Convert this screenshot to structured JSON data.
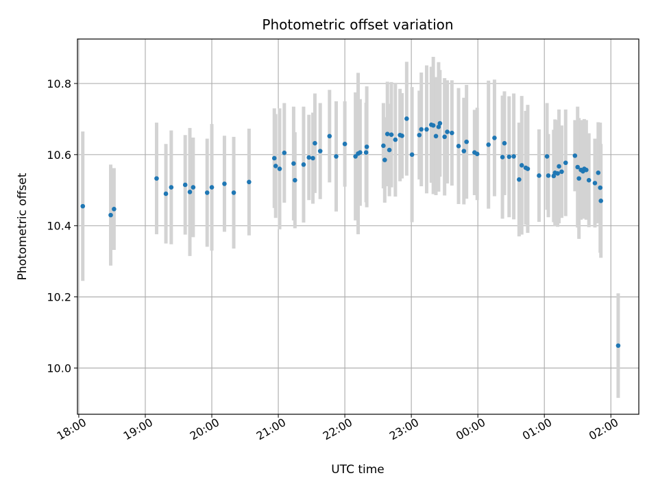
{
  "chart_data": {
    "type": "scatter",
    "title": "Photometric offset variation",
    "xlabel": "UTC time",
    "ylabel": "Photometric offset",
    "x_ticks": [
      "18:00",
      "19:00",
      "20:00",
      "21:00",
      "22:00",
      "23:00",
      "00:00",
      "01:00",
      "02:00"
    ],
    "y_ticks": [
      "10.0",
      "10.2",
      "10.4",
      "10.6",
      "10.8"
    ],
    "x_range_hours": [
      17.98,
      26.42
    ],
    "ylim": [
      9.87,
      10.925
    ],
    "grid": true,
    "colors": {
      "point": "#1f77b4",
      "errorbar": "#d3d3d3",
      "grid": "#b0b0b0"
    },
    "series": [
      {
        "x_hours": [
          18.06,
          18.48,
          18.53,
          19.17,
          19.31,
          19.39,
          19.6,
          19.67,
          19.72,
          19.93,
          20.0,
          20.19,
          20.33,
          20.56,
          20.94,
          20.96,
          21.02,
          21.09,
          21.23,
          21.25,
          21.38,
          21.46,
          21.52,
          21.55,
          21.63,
          21.77,
          21.87,
          22.0,
          22.16,
          22.2,
          22.23,
          22.32,
          22.33,
          22.58,
          22.6,
          22.64,
          22.67,
          22.7,
          22.76,
          22.83,
          22.86,
          22.93,
          23.01,
          23.12,
          23.15,
          23.23,
          23.3,
          23.33,
          23.37,
          23.41,
          23.43,
          23.5,
          23.54,
          23.61,
          23.71,
          23.79,
          23.83,
          23.95,
          23.99,
          24.16,
          24.25,
          24.37,
          24.4,
          24.47,
          24.54,
          24.62,
          24.66,
          24.72,
          24.75,
          24.92,
          25.04,
          25.06,
          25.14,
          25.16,
          25.2,
          25.22,
          25.26,
          25.32,
          25.46,
          25.5,
          25.52,
          25.55,
          25.58,
          25.6,
          25.63,
          25.67,
          25.76,
          25.81,
          25.84,
          25.85,
          26.11
        ],
        "y": [
          10.455,
          10.43,
          10.447,
          10.533,
          10.49,
          10.508,
          10.515,
          10.495,
          10.508,
          10.493,
          10.508,
          10.518,
          10.493,
          10.523,
          10.59,
          10.568,
          10.56,
          10.605,
          10.575,
          10.528,
          10.572,
          10.592,
          10.59,
          10.632,
          10.61,
          10.652,
          10.595,
          10.63,
          10.595,
          10.603,
          10.606,
          10.606,
          10.622,
          10.625,
          10.585,
          10.658,
          10.613,
          10.656,
          10.642,
          10.655,
          10.653,
          10.701,
          10.6,
          10.655,
          10.671,
          10.671,
          10.684,
          10.682,
          10.652,
          10.678,
          10.688,
          10.65,
          10.664,
          10.661,
          10.624,
          10.61,
          10.636,
          10.606,
          10.602,
          10.628,
          10.647,
          10.593,
          10.632,
          10.594,
          10.595,
          10.53,
          10.57,
          10.563,
          10.56,
          10.541,
          10.595,
          10.541,
          10.54,
          10.549,
          10.547,
          10.567,
          10.552,
          10.577,
          10.597,
          10.565,
          10.533,
          10.557,
          10.553,
          10.56,
          10.557,
          10.528,
          10.52,
          10.549,
          10.507,
          10.47,
          10.063
        ],
        "err": [
          0.21,
          0.142,
          0.115,
          0.157,
          0.14,
          0.16,
          0.14,
          0.18,
          0.14,
          0.152,
          0.178,
          0.135,
          0.157,
          0.15,
          0.14,
          0.146,
          0.17,
          0.14,
          0.16,
          0.135,
          0.163,
          0.12,
          0.128,
          0.14,
          0.135,
          0.13,
          0.155,
          0.12,
          0.18,
          0.227,
          0.15,
          0.14,
          0.17,
          0.12,
          0.12,
          0.147,
          0.13,
          0.148,
          0.16,
          0.13,
          0.12,
          0.16,
          0.19,
          0.125,
          0.16,
          0.18,
          0.163,
          0.193,
          0.166,
          0.182,
          0.15,
          0.165,
          0.145,
          0.148,
          0.163,
          0.15,
          0.16,
          0.12,
          0.13,
          0.18,
          0.164,
          0.173,
          0.146,
          0.17,
          0.177,
          0.16,
          0.195,
          0.16,
          0.18,
          0.13,
          0.15,
          0.117,
          0.13,
          0.15,
          0.15,
          0.16,
          0.13,
          0.15,
          0.1,
          0.17,
          0.17,
          0.14,
          0.125,
          0.14,
          0.14,
          0.132,
          0.125,
          0.142,
          0.183,
          0.16,
          0.147
        ]
      }
    ]
  }
}
